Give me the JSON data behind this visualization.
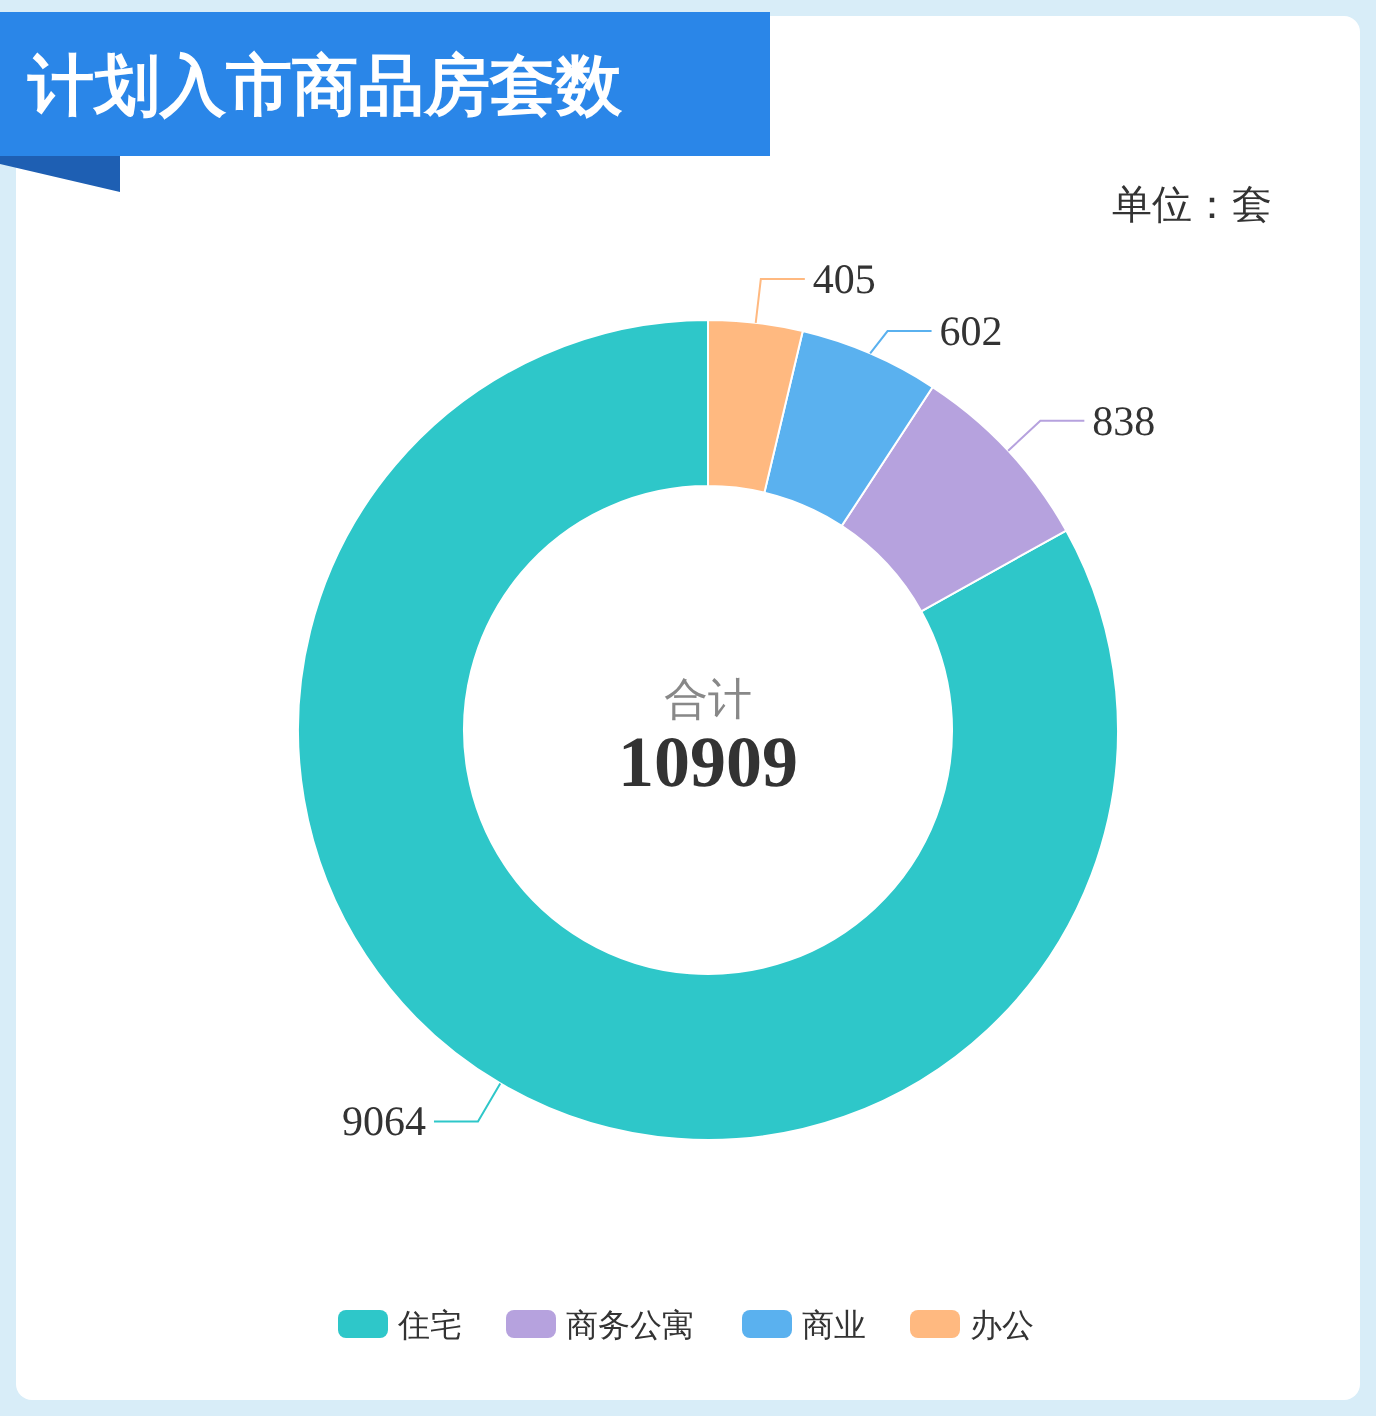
{
  "chart_data": {
    "type": "donut",
    "title": "计划入市商品房套数",
    "categories": [
      "住宅",
      "商务公寓",
      "商业",
      "办公"
    ],
    "values": [
      9064,
      838,
      602,
      405
    ],
    "colors": [
      "#2ec7c9",
      "#b6a2de",
      "#5ab1ef",
      "#ffb980"
    ],
    "data_labels": true,
    "legend": "bottom",
    "annotations": [
      "单位：套",
      "合计",
      "10909"
    ]
  }
}
